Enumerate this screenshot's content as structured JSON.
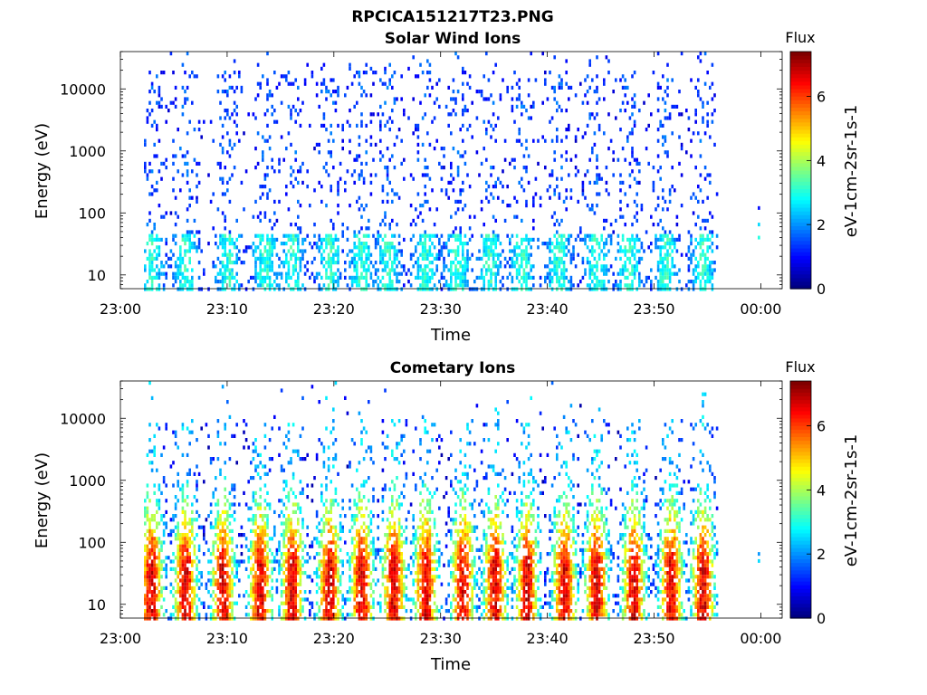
{
  "figure": {
    "title": "RPCICA151217T23.PNG"
  },
  "chart_data": [
    {
      "type": "heatmap",
      "title": "Solar Wind Ions",
      "xlabel": "Time",
      "ylabel": "Energy (eV)",
      "yscale": "log",
      "x_ticks": [
        "23:00",
        "23:10",
        "23:20",
        "23:30",
        "23:40",
        "23:50",
        "00:00"
      ],
      "x_range_minutes": [
        0,
        62
      ],
      "y_ticks": [
        "10",
        "100",
        "1000",
        "10000"
      ],
      "y_range_eV": [
        6,
        40000
      ],
      "colorbar": {
        "title": "Flux",
        "label": "eV-1cm-2sr-1s-1",
        "range": [
          0,
          7.4
        ],
        "ticks": [
          "0",
          "2",
          "4",
          "6"
        ]
      },
      "bursts_minute": [
        2.8,
        6.0,
        10.0,
        13.5,
        16.0,
        19.5,
        22.5,
        25.0,
        28.5,
        31.5,
        34.5,
        37.5,
        41.0,
        44.5,
        47.5,
        51.0,
        54.5
      ],
      "peak_flux": 4.5,
      "note_points": [
        {
          "minute": 59.8,
          "energy": 65,
          "flux": 2.5
        },
        {
          "minute": 59.8,
          "energy": 40,
          "flux": 3.0
        },
        {
          "minute": 59.8,
          "energy": 120,
          "flux": 1.0
        }
      ]
    },
    {
      "type": "heatmap",
      "title": "Cometary Ions",
      "xlabel": "Time",
      "ylabel": "Energy (eV)",
      "yscale": "log",
      "x_ticks": [
        "23:00",
        "23:10",
        "23:20",
        "23:30",
        "23:40",
        "23:50",
        "00:00"
      ],
      "x_range_minutes": [
        0,
        62
      ],
      "y_ticks": [
        "10",
        "100",
        "1000",
        "10000"
      ],
      "y_range_eV": [
        6,
        40000
      ],
      "colorbar": {
        "title": "Flux",
        "label": "eV-1cm-2sr-1s-1",
        "range": [
          0,
          7.4
        ],
        "ticks": [
          "0",
          "2",
          "4",
          "6"
        ]
      },
      "bursts_minute": [
        2.8,
        6.0,
        9.5,
        13.0,
        16.0,
        19.5,
        22.5,
        25.5,
        28.5,
        32.0,
        35.0,
        38.0,
        41.5,
        44.5,
        48.0,
        51.5,
        54.5
      ],
      "peak_flux": 7.0,
      "note_points": [
        {
          "minute": 59.8,
          "energy": 65,
          "flux": 2.0
        },
        {
          "minute": 59.8,
          "energy": 50,
          "flux": 2.5
        }
      ]
    }
  ]
}
